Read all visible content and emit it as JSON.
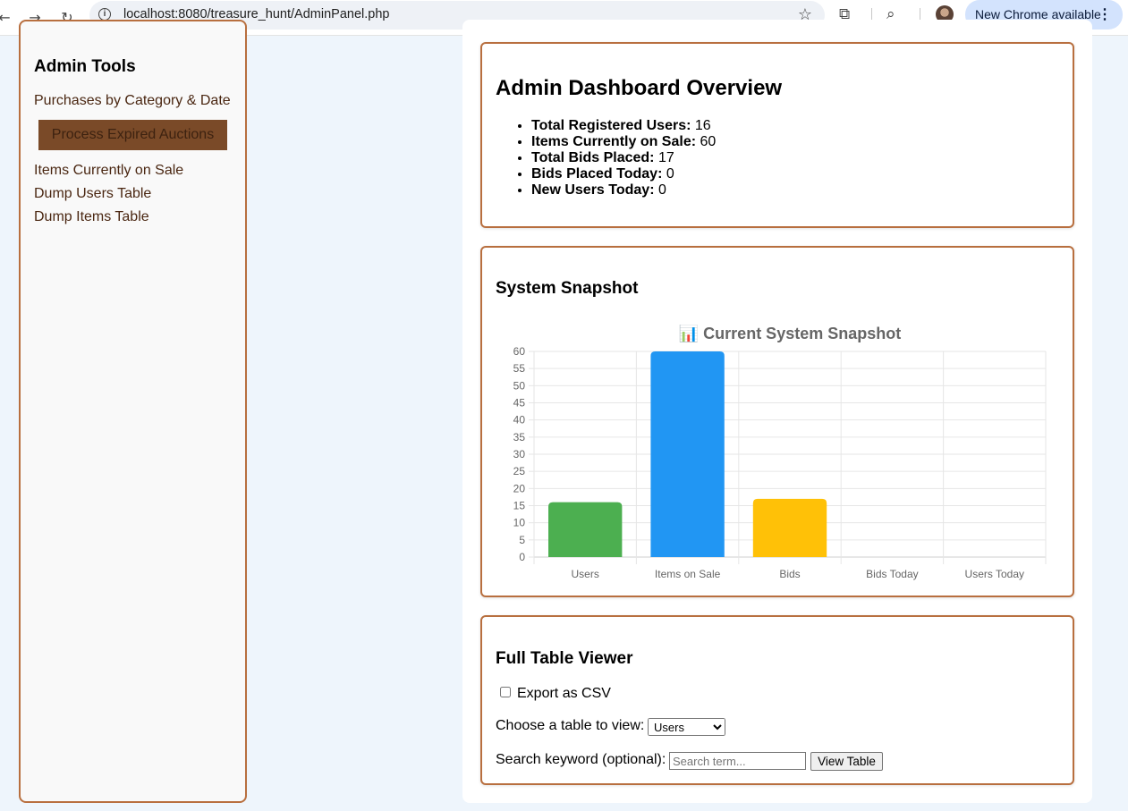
{
  "browser": {
    "url": "localhost:8080/treasure_hunt/AdminPanel.php",
    "update_label": "New Chrome available",
    "icons": [
      "back-arrow-icon",
      "forward-arrow-icon",
      "reload-icon",
      "info-icon",
      "star-icon",
      "extensions-icon",
      "tab-search-icon",
      "kebab-menu-icon"
    ]
  },
  "sidebar": {
    "title": "Admin Tools",
    "link_purchases": "Purchases by Category & Date",
    "process_button": "Process Expired Auctions",
    "link_items_sale": "Items Currently on Sale",
    "link_dump_users": "Dump Users Table",
    "link_dump_items": "Dump Items Table",
    "colors": {
      "border": "#b86f3f",
      "button_bg": "#7a4a28",
      "link": "#4a2712"
    }
  },
  "overview": {
    "title": "Admin Dashboard Overview",
    "stats": [
      {
        "label": "Total Registered Users:",
        "value": "16"
      },
      {
        "label": "Items Currently on Sale:",
        "value": "60"
      },
      {
        "label": "Total Bids Placed:",
        "value": "17"
      },
      {
        "label": "Bids Placed Today:",
        "value": "0"
      },
      {
        "label": "New Users Today:",
        "value": "0"
      }
    ]
  },
  "snapshot": {
    "heading": "System Snapshot"
  },
  "chart_data": {
    "type": "bar",
    "title": "📊 Current System Snapshot",
    "categories": [
      "Users",
      "Items on Sale",
      "Bids",
      "Bids Today",
      "Users Today"
    ],
    "values": [
      16,
      60,
      17,
      0,
      0
    ],
    "colors": [
      "#4caf50",
      "#2196f3",
      "#ffc107",
      "#f44336",
      "#9c27b0"
    ],
    "ylim": [
      0,
      60
    ],
    "yticks": [
      0,
      5,
      10,
      15,
      20,
      25,
      30,
      35,
      40,
      45,
      50,
      55,
      60
    ],
    "grid": true,
    "legend": "none"
  },
  "table_viewer": {
    "heading": "Full Table Viewer",
    "export_label": "Export as CSV",
    "choose_label": "Choose a table to view:",
    "selected_table": "Users",
    "search_label": "Search keyword (optional):",
    "search_placeholder": "Search term...",
    "view_button": "View Table"
  }
}
